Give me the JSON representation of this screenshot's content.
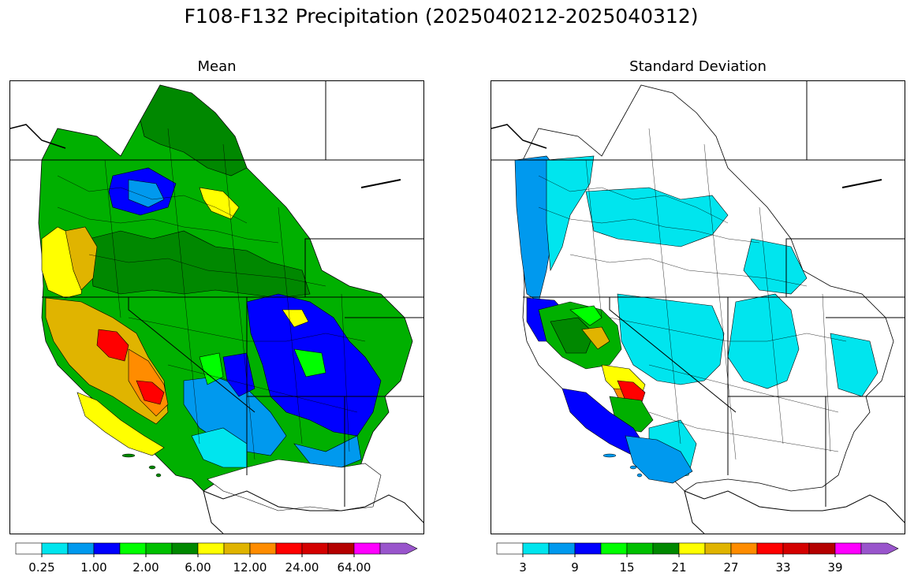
{
  "figure": {
    "title": "F108-F132 Precipitation (2025040212-2025040312)"
  },
  "panels": [
    {
      "title": "Mean",
      "colorbar": {
        "colors": [
          "#ffffff",
          "#00e5ee",
          "#0099ee",
          "#0000ff",
          "#00ff00",
          "#00c000",
          "#008800",
          "#ffff00",
          "#e0b400",
          "#ff8c00",
          "#ff0000",
          "#d40000",
          "#b40000",
          "#ff00ff",
          "#9955cc"
        ],
        "tick_labels": [
          "0.25",
          "1.00",
          "2.00",
          "6.00",
          "12.00",
          "24.00",
          "64.00"
        ],
        "extend": "max"
      }
    },
    {
      "title": "Standard Deviation",
      "colorbar": {
        "colors": [
          "#ffffff",
          "#00e5ee",
          "#0099ee",
          "#0000ff",
          "#00ff00",
          "#00c000",
          "#008800",
          "#ffff00",
          "#e0b400",
          "#ff8c00",
          "#ff0000",
          "#d40000",
          "#b40000",
          "#ff00ff",
          "#9955cc"
        ],
        "tick_labels": [
          "3",
          "9",
          "15",
          "21",
          "27",
          "33",
          "39"
        ],
        "extend": "max"
      }
    }
  ]
}
